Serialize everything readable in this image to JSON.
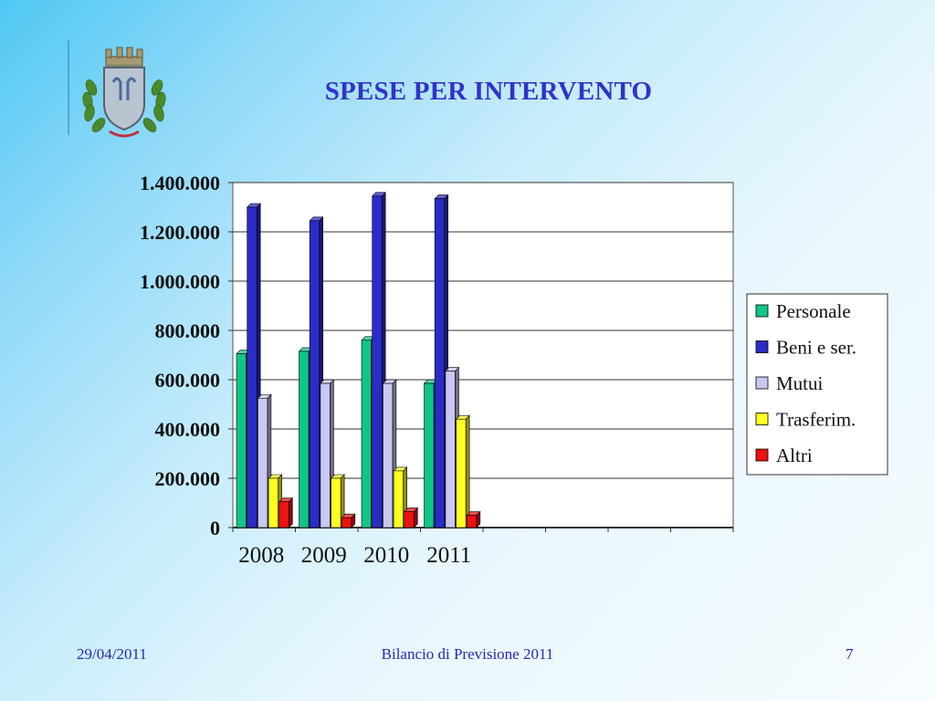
{
  "slide": {
    "title": "SPESE PER INTERVENTO",
    "footer": {
      "date": "29/04/2011",
      "center": "Bilancio di Previsione 2011",
      "page": "7"
    },
    "colors": {
      "title": "#3232c8",
      "footer": "#2828b4"
    },
    "logo": {
      "icon": "municipal-crest-icon"
    }
  },
  "chart_data": {
    "type": "bar",
    "style": "3d-clustered-column",
    "title": "",
    "xlabel": "",
    "ylabel": "",
    "categories": [
      "2008",
      "2009",
      "2010",
      "2011",
      "",
      "",
      "",
      ""
    ],
    "series": [
      {
        "name": "Personale",
        "color": "#11c48a",
        "values": [
          705000,
          715000,
          760000,
          585000,
          null,
          null,
          null,
          null
        ]
      },
      {
        "name": "Beni e ser.",
        "color": "#2b2bc8",
        "values": [
          1300000,
          1245000,
          1345000,
          1335000,
          null,
          null,
          null,
          null
        ]
      },
      {
        "name": "Mutui",
        "color": "#c8c8f2",
        "values": [
          525000,
          585000,
          585000,
          635000,
          null,
          null,
          null,
          null
        ]
      },
      {
        "name": "Trasferim.",
        "color": "#ffff22",
        "values": [
          200000,
          200000,
          230000,
          440000,
          null,
          null,
          null,
          null
        ]
      },
      {
        "name": "Altri",
        "color": "#ee1111",
        "values": [
          105000,
          40000,
          65000,
          50000,
          null,
          null,
          null,
          null
        ]
      }
    ],
    "ylim": [
      0,
      1400000
    ],
    "yticks": [
      0,
      200000,
      400000,
      600000,
      800000,
      1000000,
      1200000,
      1400000
    ],
    "ytick_labels": [
      "0",
      "200.000",
      "400.000",
      "600.000",
      "800.000",
      "1.000.000",
      "1.200.000",
      "1.400.000"
    ],
    "grid": true,
    "legend": "right"
  }
}
